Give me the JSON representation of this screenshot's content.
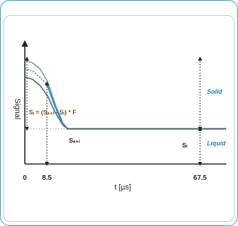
{
  "chart_data": {
    "type": "line",
    "title": "",
    "xlabel": "t [µs]",
    "ylabel": "Signal",
    "x_ticks": [
      "0",
      "8.5",
      "67.5"
    ],
    "x_tick_values": [
      0,
      8.5,
      67.5
    ],
    "xlim": [
      0,
      80
    ],
    "ylim": [
      0,
      1.1
    ],
    "grid": false,
    "legend": "none",
    "plateau_end": 16,
    "liquid_level": 0.34,
    "series": [
      {
        "key": "upper_gray",
        "color": "#9e9e9e",
        "style": "solid",
        "points": [
          [
            0,
            1.0
          ],
          [
            3,
            0.98
          ],
          [
            6,
            0.92
          ],
          [
            9,
            0.8
          ],
          [
            12,
            0.58
          ],
          [
            15,
            0.4
          ],
          [
            17,
            0.34
          ],
          [
            80,
            0.34
          ]
        ]
      },
      {
        "key": "dotted_blue",
        "color": "#1e9ad6",
        "style": "dotted",
        "points": [
          [
            0,
            0.92
          ],
          [
            3,
            0.9
          ],
          [
            6,
            0.84
          ],
          [
            9,
            0.76
          ]
        ]
      },
      {
        "key": "blue",
        "color": "#1e9ad6",
        "style": "solid",
        "points": [
          [
            9,
            0.76
          ],
          [
            12,
            0.56
          ],
          [
            15,
            0.39
          ],
          [
            17,
            0.34
          ],
          [
            80,
            0.34
          ]
        ]
      },
      {
        "key": "lower_gray",
        "color": "#6e6e6e",
        "style": "solid",
        "points": [
          [
            0,
            0.84
          ],
          [
            3,
            0.82
          ],
          [
            6,
            0.76
          ],
          [
            9,
            0.66
          ],
          [
            12,
            0.5
          ],
          [
            15,
            0.38
          ],
          [
            17,
            0.34
          ],
          [
            80,
            0.34
          ]
        ]
      }
    ],
    "annotations": [
      {
        "key": "formula",
        "text": "Sᵢ = (Sₛ₊ₗ - Sₗ) * F",
        "color": "#6b5a1e"
      },
      {
        "key": "s_sl",
        "text": "Sₛ₊ₗ",
        "color": "#222222"
      },
      {
        "key": "s_l",
        "text": "Sₗ",
        "color": "#222222"
      },
      {
        "key": "solid",
        "text": "Solid",
        "color": "#1f7fb8"
      },
      {
        "key": "liquid",
        "text": "Liquid",
        "color": "#1f7fb8"
      }
    ],
    "markers": [
      {
        "key": "formula_arrow",
        "x": 0.4,
        "from": 1.02,
        "to": 0.34
      },
      {
        "key": "ssl_arrow",
        "x": 8.5,
        "from": 0.78,
        "to": 0.0
      },
      {
        "key": "solid_arrow",
        "x": 67.5,
        "from": 1.02,
        "to": 0.34
      },
      {
        "key": "liquid_arrow",
        "x": 67.5,
        "from": 0.34,
        "to": 0.0
      }
    ]
  }
}
